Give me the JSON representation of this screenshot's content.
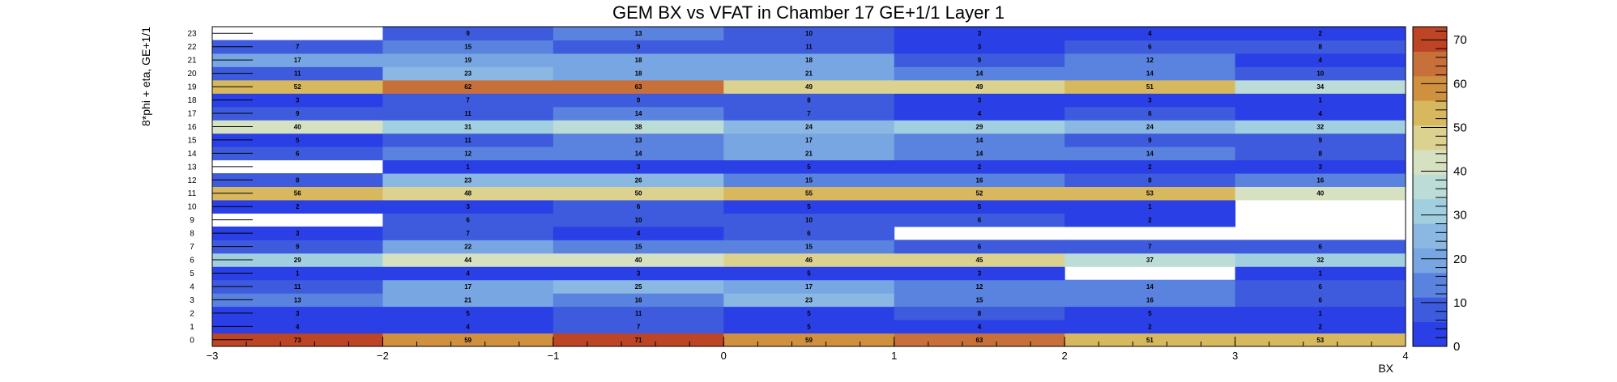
{
  "chart_data": {
    "type": "heatmap",
    "title": "GEM BX vs VFAT in Chamber 17 GE+1/1 Layer 1",
    "xlabel": "BX",
    "ylabel": "8*phi + eta, GE+1/1",
    "xlim": [
      -3,
      4
    ],
    "ylim": [
      0,
      24
    ],
    "x_bins": [
      -3,
      -2,
      -1,
      0,
      1,
      2,
      3
    ],
    "x_ticks": [
      -3,
      -2,
      -1,
      0,
      1,
      2,
      3,
      4
    ],
    "y_bins": [
      0,
      1,
      2,
      3,
      4,
      5,
      6,
      7,
      8,
      9,
      10,
      11,
      12,
      13,
      14,
      15,
      16,
      17,
      18,
      19,
      20,
      21,
      22,
      23
    ],
    "zlim": [
      0,
      73
    ],
    "colorbar_ticks": [
      0,
      10,
      20,
      30,
      40,
      50,
      60,
      70
    ],
    "values": [
      [
        73,
        59,
        71,
        59,
        63,
        51,
        53
      ],
      [
        4,
        4,
        7,
        5,
        4,
        2,
        2
      ],
      [
        3,
        5,
        11,
        5,
        8,
        5,
        1
      ],
      [
        13,
        21,
        16,
        23,
        15,
        16,
        6
      ],
      [
        11,
        17,
        25,
        17,
        12,
        14,
        6
      ],
      [
        1,
        4,
        3,
        5,
        3,
        null,
        1
      ],
      [
        29,
        44,
        40,
        46,
        45,
        37,
        32
      ],
      [
        9,
        22,
        15,
        15,
        6,
        7,
        6
      ],
      [
        3,
        7,
        4,
        6,
        null,
        null,
        null
      ],
      [
        null,
        6,
        10,
        10,
        6,
        2,
        null
      ],
      [
        2,
        3,
        6,
        5,
        5,
        1,
        null
      ],
      [
        56,
        48,
        50,
        55,
        52,
        53,
        40
      ],
      [
        8,
        23,
        26,
        15,
        16,
        8,
        16
      ],
      [
        null,
        1,
        3,
        5,
        2,
        2,
        3
      ],
      [
        6,
        12,
        14,
        21,
        14,
        14,
        8
      ],
      [
        5,
        11,
        13,
        17,
        14,
        9,
        9
      ],
      [
        40,
        31,
        38,
        24,
        29,
        24,
        32
      ],
      [
        9,
        11,
        14,
        7,
        4,
        6,
        4
      ],
      [
        3,
        7,
        9,
        8,
        3,
        3,
        1
      ],
      [
        52,
        62,
        63,
        49,
        49,
        51,
        34
      ],
      [
        11,
        23,
        18,
        21,
        14,
        14,
        10
      ],
      [
        17,
        19,
        18,
        18,
        9,
        12,
        4
      ],
      [
        7,
        15,
        9,
        11,
        3,
        6,
        8
      ],
      [
        null,
        9,
        13,
        10,
        3,
        4,
        2
      ]
    ],
    "palette": [
      "#2a3fe6",
      "#3d5bdc",
      "#5a82df",
      "#78a6e2",
      "#8ab8e2",
      "#a2cfdf",
      "#bcdcd8",
      "#d6e1c2",
      "#dcd290",
      "#d8b85e",
      "#cf9040",
      "#c8703a",
      "#bd4424"
    ]
  }
}
